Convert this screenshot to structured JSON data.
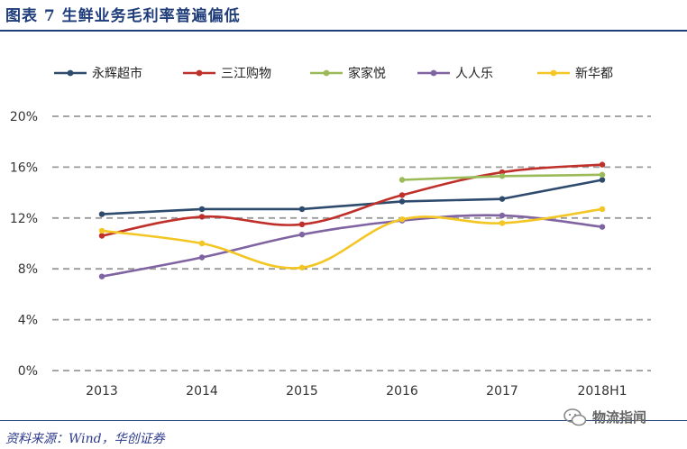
{
  "figure": {
    "title": "图表 7  生鲜业务毛利率普遍偏低",
    "source": "资料来源：Wind，华创证券",
    "watermark": "物流指闻"
  },
  "chart_data": {
    "type": "line",
    "title": "",
    "xlabel": "",
    "ylabel": "",
    "categories": [
      "2013",
      "2014",
      "2015",
      "2016",
      "2017",
      "2018H1"
    ],
    "ylim": [
      0,
      20
    ],
    "yticks": [
      0,
      4,
      8,
      12,
      16,
      20
    ],
    "ytick_labels": [
      "0%",
      "4%",
      "8%",
      "12%",
      "16%",
      "20%"
    ],
    "grid": "horizontal dashed",
    "legend": "top",
    "series": [
      {
        "name": "永辉超市",
        "color": "#2e4b6e",
        "smooth": false,
        "values": [
          12.3,
          12.7,
          12.7,
          13.3,
          13.5,
          15.0
        ]
      },
      {
        "name": "三江购物",
        "color": "#c0302a",
        "smooth": true,
        "values": [
          10.6,
          12.1,
          11.5,
          13.8,
          15.6,
          16.2
        ]
      },
      {
        "name": "家家悦",
        "color": "#9bbb59",
        "smooth": false,
        "values": [
          null,
          null,
          null,
          15.0,
          15.3,
          15.4
        ]
      },
      {
        "name": "人人乐",
        "color": "#8064a2",
        "smooth": true,
        "values": [
          7.4,
          8.9,
          10.7,
          11.8,
          12.2,
          11.3
        ]
      },
      {
        "name": "新华都",
        "color": "#f3c623",
        "smooth": true,
        "values": [
          11.0,
          10.0,
          8.1,
          11.9,
          11.6,
          12.7
        ]
      }
    ]
  }
}
